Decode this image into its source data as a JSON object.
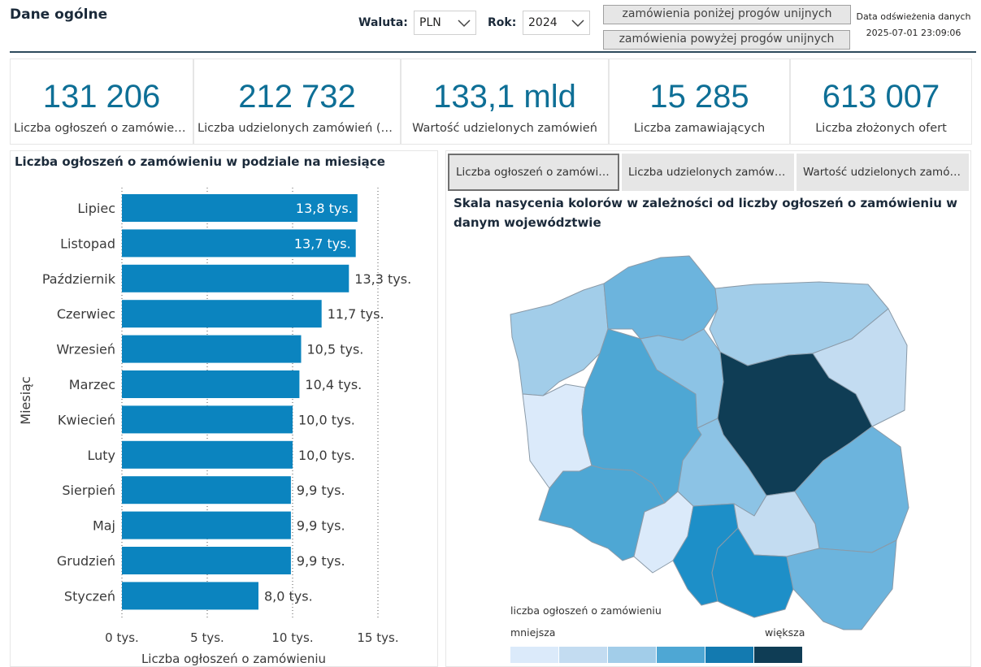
{
  "header": {
    "title": "Dane ogólne",
    "currency_label": "Waluta:",
    "currency_value": "PLN",
    "year_label": "Rok:",
    "year_value": "2024",
    "btn_below": "zamówienia poniżej progów unijnych",
    "btn_above": "zamówienia powyżej progów unijnych",
    "refresh_label": "Data odświeżenia danych",
    "refresh_value": "2025-07-01 23:09:06"
  },
  "kpis": [
    {
      "value": "131 206",
      "caption": "Liczba ogłoszeń o zamówieniu"
    },
    {
      "value": "212 732",
      "caption": "Liczba udzielonych zamówień (części)"
    },
    {
      "value": "133,1 mld",
      "caption": "Wartość udzielonych zamówień"
    },
    {
      "value": "15 285",
      "caption": "Liczba zamawiających"
    },
    {
      "value": "613 007",
      "caption": "Liczba złożonych ofert"
    }
  ],
  "chart_data": {
    "type": "bar",
    "orientation": "horizontal",
    "title": "Liczba ogłoszeń o zamówieniu w podziale na miesiące",
    "xlabel": "Liczba ogłoszeń o zamówieniu",
    "ylabel": "Miesiąc",
    "categories": [
      "Lipiec",
      "Listopad",
      "Październik",
      "Czerwiec",
      "Wrzesień",
      "Marzec",
      "Kwiecień",
      "Luty",
      "Sierpień",
      "Maj",
      "Grudzień",
      "Styczeń"
    ],
    "values": [
      13.8,
      13.7,
      13.3,
      11.7,
      10.5,
      10.4,
      10.0,
      10.0,
      9.9,
      9.9,
      9.9,
      8.0
    ],
    "data_labels": [
      "13,8 tys.",
      "13,7 tys.",
      "13,3 tys.",
      "11,7 tys.",
      "10,5 tys.",
      "10,4 tys.",
      "10,0 tys.",
      "10,0 tys.",
      "9,9 tys.",
      "9,9 tys.",
      "9,9 tys.",
      "8,0 tys."
    ],
    "xlim": [
      0,
      15
    ],
    "xticks": [
      0,
      5,
      10,
      15
    ],
    "xtick_labels": [
      "0 tys.",
      "5 tys.",
      "10 tys.",
      "15 tys."
    ],
    "grid": true,
    "bar_color": "#0b84bf"
  },
  "map": {
    "tabs": [
      "Liczba ogłoszeń o zamówieniu",
      "Liczba udzielonych zamówień (części)",
      "Wartość udzielonych zamówień"
    ],
    "active_tab": 0,
    "title": "Skala nasycenia kolorów w zależności od liczby ogłoszeń o zamówieniu w danym województwie",
    "legend_title": "liczba ogłoszeń o zamówieniu",
    "legend_min": "mniejsza",
    "legend_max": "większa",
    "legend_colors": [
      "#dbeafa",
      "#c3dcf1",
      "#a2cde9",
      "#4ea7d4",
      "#137ab0",
      "#0f3d55"
    ]
  },
  "colors": {
    "accent": "#0e6f96",
    "bar": "#0b84bf",
    "header_rule": "#2d4a5c"
  }
}
